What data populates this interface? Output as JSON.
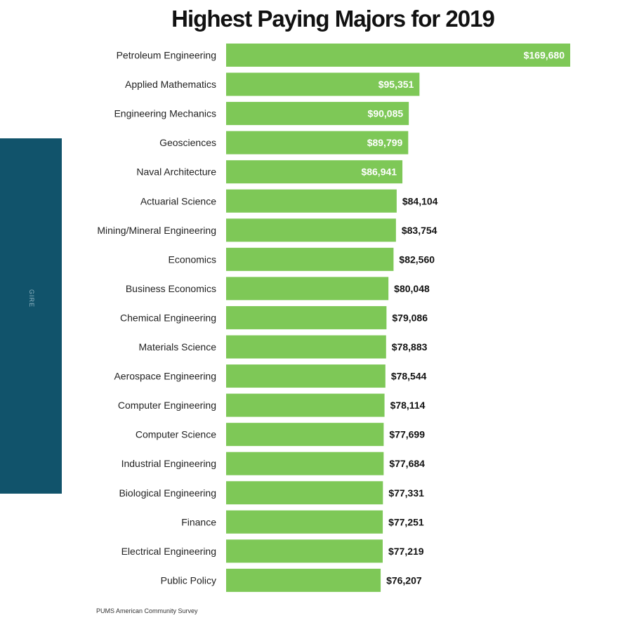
{
  "side_panel": {
    "text": "GIRE",
    "color": "#11536b"
  },
  "source": "PUMS American Community Survey",
  "chart_data": {
    "type": "bar",
    "orientation": "horizontal",
    "title": "Highest Paying Majors for 2019",
    "xlabel": "",
    "ylabel": "",
    "bar_color": "#7ec857",
    "xlim": [
      0,
      169680
    ],
    "grid": false,
    "legend": "none",
    "categories": [
      "Petroleum Engineering",
      "Applied Mathematics",
      "Engineering Mechanics",
      "Geosciences",
      "Naval Architecture",
      "Actuarial Science",
      "Mining/Mineral Engineering",
      "Economics",
      "Business Economics",
      "Chemical Engineering",
      "Materials Science",
      "Aerospace Engineering",
      "Computer Engineering",
      "Computer Science",
      "Industrial Engineering",
      "Biological Engineering",
      "Finance",
      "Electrical Engineering",
      "Public Policy"
    ],
    "values": [
      169680,
      95351,
      90085,
      89799,
      86941,
      84104,
      83754,
      82560,
      80048,
      79086,
      78883,
      78544,
      78114,
      77699,
      77684,
      77331,
      77251,
      77219,
      76207
    ],
    "value_labels": [
      "$169,680",
      "$95,351",
      "$90,085",
      "$89,799",
      "$86,941",
      "$84,104",
      "$83,754",
      "$82,560",
      "$80,048",
      "$79,086",
      "$78,883",
      "$78,544",
      "$78,114",
      "$77,699",
      "$77,684",
      "$77,331",
      "$77,251",
      "$77,219",
      "$76,207"
    ],
    "label_inside_count": 5
  }
}
